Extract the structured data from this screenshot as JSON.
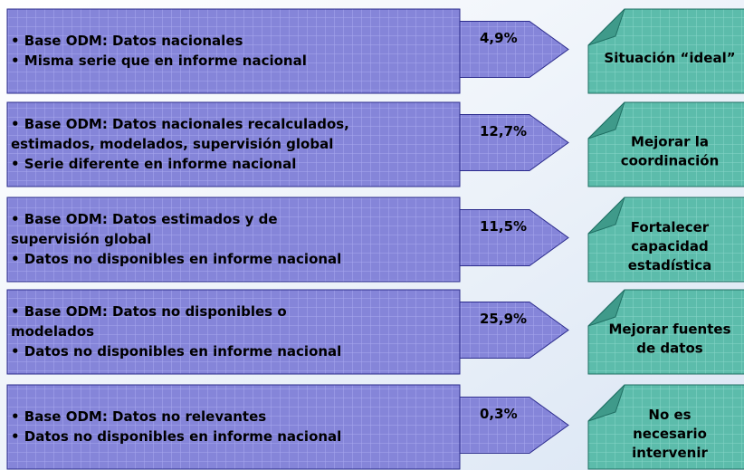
{
  "rows": [
    {
      "left": [
        "• Base ODM: Datos nacionales",
        "• Misma serie que en informe nacional"
      ],
      "pct": "4,9%",
      "right": [
        "Situación “ideal”"
      ]
    },
    {
      "left": [
        "• Base ODM: Datos nacionales recalculados,",
        "estimados, modelados, supervisión global",
        "• Serie diferente en informe nacional"
      ],
      "pct": "12,7%",
      "right": [
        "Mejorar la",
        "coordinación"
      ]
    },
    {
      "left": [
        "• Base ODM: Datos estimados y de",
        "supervisión global",
        "• Datos no disponibles en informe nacional"
      ],
      "pct": "11,5%",
      "right": [
        "Fortalecer",
        "capacidad",
        "estadística"
      ]
    },
    {
      "left": [
        "• Base ODM: Datos no disponibles o",
        "modelados",
        "• Datos no disponibles en informe nacional"
      ],
      "pct": "25,9%",
      "right": [
        "Mejorar fuentes",
        "de datos"
      ]
    },
    {
      "left": [
        "• Base ODM: Datos no relevantes",
        "• Datos no disponibles en informe nacional"
      ],
      "pct": "0,3%",
      "right": [
        "No es",
        "necesario",
        "intervenir"
      ]
    }
  ]
}
